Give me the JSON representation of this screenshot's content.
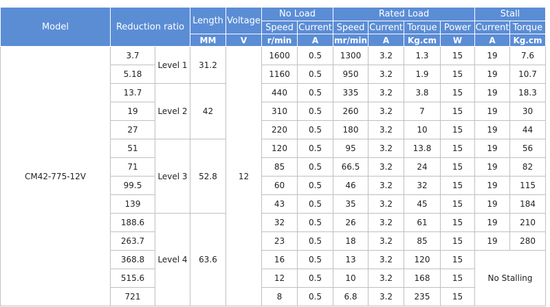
{
  "header": {
    "model": "Model",
    "reduction_ratio": "Reduction ratio",
    "length": "Length",
    "voltage": "Voltage",
    "no_load": "No Load",
    "rated_load": "Rated Load",
    "stall": "Stall",
    "subheaders": [
      "Speed",
      "Current",
      "Speed",
      "Current",
      "Torque",
      "Power",
      "Current",
      "Torque"
    ],
    "units": [
      "MM",
      "V",
      "r/min",
      "A",
      "mr/min",
      "A",
      "Kg.cm",
      "W",
      "A",
      "Kg.cm"
    ]
  },
  "model": "CM42-775-12V",
  "voltage": 12,
  "no_stalling": "No Stalling",
  "levels": [
    {
      "label": "Level 1",
      "length": 31.2,
      "rows": [
        [
          3.7,
          1600,
          0.5,
          1300,
          3.2,
          1.3,
          15,
          19,
          7.6
        ],
        [
          5.18,
          1160,
          0.5,
          950,
          3.2,
          1.9,
          15,
          19,
          10.7
        ]
      ]
    },
    {
      "label": "Level 2",
      "length": 42,
      "rows": [
        [
          13.7,
          440,
          0.5,
          335,
          3.2,
          3.8,
          15,
          19,
          18.3
        ],
        [
          19,
          310,
          0.5,
          260,
          3.2,
          7,
          15,
          19,
          30
        ],
        [
          27,
          220,
          0.5,
          180,
          3.2,
          10,
          15,
          19,
          44
        ]
      ]
    },
    {
      "label": "Level 3",
      "length": 52.8,
      "rows": [
        [
          51,
          120,
          0.5,
          95,
          3.2,
          13.8,
          15,
          19,
          56
        ],
        [
          71,
          85,
          0.5,
          66.5,
          3.2,
          24,
          15,
          19,
          82
        ],
        [
          99.5,
          60,
          0.5,
          46,
          3.2,
          32,
          15,
          19,
          115
        ],
        [
          139,
          43,
          0.5,
          35,
          3.2,
          45,
          15,
          19,
          184
        ]
      ]
    },
    {
      "label": "Level 4",
      "length": 63.6,
      "rows": [
        [
          188.6,
          32,
          0.5,
          26,
          3.2,
          61,
          15,
          19,
          210
        ],
        [
          263.7,
          23,
          0.5,
          18,
          3.2,
          85,
          15,
          19,
          280
        ],
        [
          368.8,
          16,
          0.5,
          13,
          3.2,
          120,
          15
        ],
        [
          515.6,
          12,
          0.5,
          10,
          3.2,
          168,
          15
        ],
        [
          721,
          8,
          0.5,
          6.8,
          3.2,
          235,
          15
        ]
      ]
    }
  ]
}
